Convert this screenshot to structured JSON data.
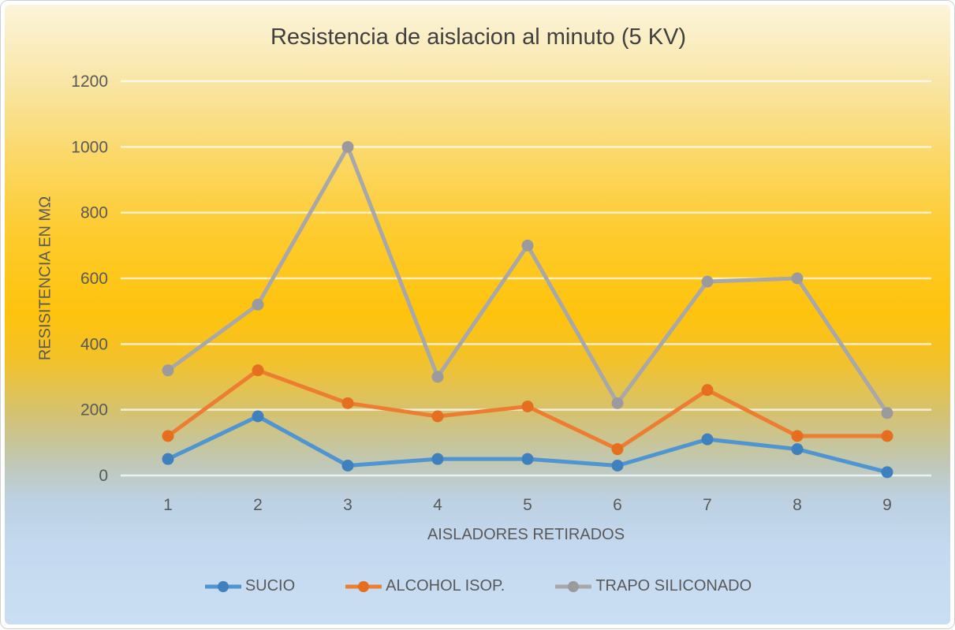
{
  "chart_data": {
    "type": "line",
    "title": "Resistencia de aislacion al minuto (5 KV)",
    "xlabel": "AISLADORES RETIRADOS",
    "ylabel": "RESISITENCIA EN MΩ",
    "categories": [
      "1",
      "2",
      "3",
      "4",
      "5",
      "6",
      "7",
      "8",
      "9"
    ],
    "ylim": [
      0,
      1200
    ],
    "yticks": [
      0,
      200,
      400,
      600,
      800,
      1000,
      1200
    ],
    "grid": "horizontal-only",
    "legend_position": "bottom-center",
    "series": [
      {
        "name": "SUCIO",
        "color": "#4E95D1",
        "marker_color": "#3F80BE",
        "values": [
          50,
          180,
          30,
          50,
          50,
          30,
          110,
          80,
          10
        ]
      },
      {
        "name": "ALCOHOL ISOP.",
        "color": "#ED7D31",
        "marker_color": "#E56F1E",
        "values": [
          120,
          320,
          220,
          180,
          210,
          80,
          260,
          120,
          120
        ]
      },
      {
        "name": "TRAPO SILICONADO",
        "color": "#A8A8A8",
        "marker_color": "#9B9B9D",
        "values": [
          320,
          520,
          1000,
          300,
          700,
          220,
          590,
          600,
          190
        ]
      }
    ]
  },
  "palette": {
    "background_top": "#FCF4DB",
    "background_gold": "#FFC30D",
    "background_bottom": "#CADEF3",
    "gridline": "rgba(255,255,255,0.72)",
    "tick_text": "#595959",
    "title_text": "#404040"
  }
}
